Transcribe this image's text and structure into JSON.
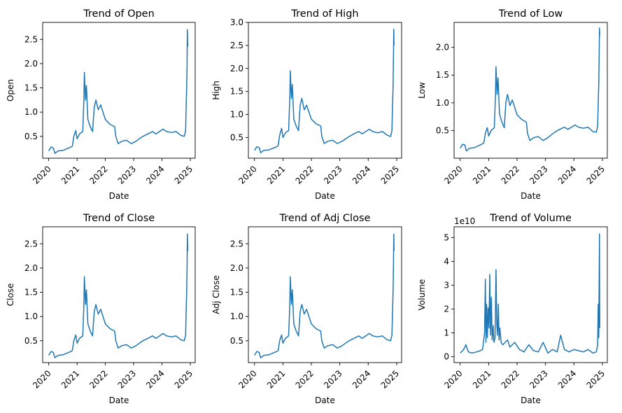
{
  "figure": {
    "background": "#ffffff",
    "line_color": "#1f77b4"
  },
  "chart_data": [
    {
      "type": "line",
      "title": "Trend of Open",
      "xlabel": "Date",
      "ylabel": "Open",
      "xticks": [
        "2020",
        "2021",
        "2022",
        "2023",
        "2024",
        "2025"
      ],
      "yticks": [
        "0.5",
        "1.0",
        "1.5",
        "2.0",
        "2.5"
      ],
      "xlim": [
        "2019-10-15",
        "2025-03-05"
      ],
      "ylim": [
        0.05,
        2.85
      ],
      "series": [
        {
          "x": [
            "2020-01-01",
            "2020-02-01",
            "2020-03-01",
            "2020-03-20",
            "2020-05-01",
            "2020-07-01",
            "2020-09-01",
            "2020-10-15",
            "2020-11-01",
            "2020-11-20",
            "2020-12-15",
            "2021-01-01",
            "2021-02-01",
            "2021-03-15",
            "2021-03-30",
            "2021-04-05",
            "2021-04-20",
            "2021-05-01",
            "2021-05-20",
            "2021-06-20",
            "2021-07-20",
            "2021-08-10",
            "2021-09-01",
            "2021-10-01",
            "2021-11-01",
            "2021-12-01",
            "2022-01-01",
            "2022-03-01",
            "2022-05-01",
            "2022-05-15",
            "2022-06-15",
            "2022-08-01",
            "2022-10-01",
            "2022-12-01",
            "2023-02-01",
            "2023-03-15",
            "2023-05-01",
            "2023-07-01",
            "2023-09-01",
            "2023-10-15",
            "2023-12-01",
            "2024-01-15",
            "2024-03-01",
            "2024-05-01",
            "2024-07-01",
            "2024-09-01",
            "2024-10-15",
            "2024-11-01",
            "2024-11-08",
            "2024-11-15",
            "2024-11-20",
            "2024-11-24",
            "2024-11-28"
          ],
          "y": [
            0.2,
            0.28,
            0.26,
            0.15,
            0.2,
            0.21,
            0.25,
            0.28,
            0.3,
            0.5,
            0.62,
            0.45,
            0.55,
            0.6,
            1.25,
            1.82,
            1.25,
            1.55,
            0.85,
            0.7,
            0.6,
            1.1,
            1.25,
            1.05,
            1.15,
            1.0,
            0.85,
            0.75,
            0.7,
            0.5,
            0.35,
            0.4,
            0.42,
            0.35,
            0.4,
            0.45,
            0.5,
            0.55,
            0.6,
            0.55,
            0.6,
            0.65,
            0.6,
            0.58,
            0.6,
            0.52,
            0.5,
            0.62,
            1.1,
            1.5,
            2.0,
            2.7,
            2.35
          ]
        }
      ]
    },
    {
      "type": "line",
      "title": "Trend of High",
      "xlabel": "Date",
      "ylabel": "High",
      "xticks": [
        "2020",
        "2021",
        "2022",
        "2023",
        "2024",
        "2025"
      ],
      "yticks": [
        "0.5",
        "1.0",
        "1.5",
        "2.0",
        "2.5",
        "3.0"
      ],
      "xlim": [
        "2019-10-15",
        "2025-03-05"
      ],
      "ylim": [
        0.05,
        3.0
      ],
      "series": [
        {
          "x": [
            "2020-01-01",
            "2020-02-01",
            "2020-03-01",
            "2020-03-20",
            "2020-05-01",
            "2020-07-01",
            "2020-09-01",
            "2020-10-15",
            "2020-11-01",
            "2020-11-20",
            "2020-12-15",
            "2021-01-01",
            "2021-02-01",
            "2021-03-15",
            "2021-03-30",
            "2021-04-05",
            "2021-04-20",
            "2021-05-01",
            "2021-05-20",
            "2021-06-20",
            "2021-07-20",
            "2021-08-10",
            "2021-09-01",
            "2021-10-01",
            "2021-11-01",
            "2021-12-01",
            "2022-01-01",
            "2022-03-01",
            "2022-05-01",
            "2022-05-15",
            "2022-06-15",
            "2022-08-01",
            "2022-10-01",
            "2022-12-01",
            "2023-02-01",
            "2023-03-15",
            "2023-05-01",
            "2023-07-01",
            "2023-09-01",
            "2023-10-15",
            "2023-12-01",
            "2024-01-15",
            "2024-03-01",
            "2024-05-01",
            "2024-07-01",
            "2024-09-01",
            "2024-10-15",
            "2024-11-01",
            "2024-11-08",
            "2024-11-15",
            "2024-11-20",
            "2024-11-24",
            "2024-11-28"
          ],
          "y": [
            0.22,
            0.3,
            0.28,
            0.17,
            0.22,
            0.23,
            0.27,
            0.3,
            0.33,
            0.55,
            0.7,
            0.5,
            0.6,
            0.65,
            1.35,
            1.95,
            1.35,
            1.65,
            0.9,
            0.75,
            0.65,
            1.2,
            1.35,
            1.1,
            1.2,
            1.05,
            0.9,
            0.8,
            0.75,
            0.53,
            0.37,
            0.42,
            0.44,
            0.37,
            0.42,
            0.47,
            0.52,
            0.58,
            0.63,
            0.58,
            0.63,
            0.68,
            0.63,
            0.6,
            0.63,
            0.55,
            0.52,
            0.65,
            1.2,
            1.6,
            2.2,
            2.85,
            2.5
          ]
        }
      ]
    },
    {
      "type": "line",
      "title": "Trend of Low",
      "xlabel": "Date",
      "ylabel": "Low",
      "xticks": [
        "2020",
        "2021",
        "2022",
        "2023",
        "2024",
        "2025"
      ],
      "yticks": [
        "0.5",
        "1.0",
        "1.5",
        "2.0"
      ],
      "xlim": [
        "2019-10-15",
        "2025-03-05"
      ],
      "ylim": [
        0.0,
        2.45
      ],
      "series": [
        {
          "x": [
            "2020-01-01",
            "2020-02-01",
            "2020-03-01",
            "2020-03-20",
            "2020-05-01",
            "2020-07-01",
            "2020-09-01",
            "2020-10-15",
            "2020-11-01",
            "2020-11-20",
            "2020-12-15",
            "2021-01-01",
            "2021-02-01",
            "2021-03-15",
            "2021-03-30",
            "2021-04-05",
            "2021-04-20",
            "2021-05-01",
            "2021-05-20",
            "2021-06-20",
            "2021-07-20",
            "2021-08-10",
            "2021-09-01",
            "2021-10-01",
            "2021-11-01",
            "2021-12-01",
            "2022-01-01",
            "2022-03-01",
            "2022-05-01",
            "2022-05-15",
            "2022-06-15",
            "2022-08-01",
            "2022-10-01",
            "2022-12-01",
            "2023-02-01",
            "2023-03-15",
            "2023-05-01",
            "2023-07-01",
            "2023-09-01",
            "2023-10-15",
            "2023-12-01",
            "2024-01-15",
            "2024-03-01",
            "2024-05-01",
            "2024-07-01",
            "2024-09-01",
            "2024-10-15",
            "2024-11-01",
            "2024-11-08",
            "2024-11-15",
            "2024-11-20",
            "2024-11-24",
            "2024-11-28"
          ],
          "y": [
            0.18,
            0.25,
            0.24,
            0.13,
            0.18,
            0.19,
            0.23,
            0.26,
            0.28,
            0.45,
            0.55,
            0.4,
            0.5,
            0.55,
            1.15,
            1.65,
            1.15,
            1.45,
            0.8,
            0.65,
            0.55,
            1.0,
            1.15,
            0.95,
            1.05,
            0.92,
            0.78,
            0.7,
            0.65,
            0.45,
            0.32,
            0.37,
            0.39,
            0.32,
            0.37,
            0.42,
            0.47,
            0.52,
            0.56,
            0.52,
            0.56,
            0.6,
            0.56,
            0.54,
            0.56,
            0.48,
            0.47,
            0.58,
            1.0,
            1.35,
            1.8,
            2.35,
            2.2
          ]
        }
      ]
    },
    {
      "type": "line",
      "title": "Trend of Close",
      "xlabel": "Date",
      "ylabel": "Close",
      "xticks": [
        "2020",
        "2021",
        "2022",
        "2023",
        "2024",
        "2025"
      ],
      "yticks": [
        "0.5",
        "1.0",
        "1.5",
        "2.0",
        "2.5"
      ],
      "xlim": [
        "2019-10-15",
        "2025-03-05"
      ],
      "ylim": [
        0.05,
        2.85
      ],
      "series": [
        {
          "x": [
            "2020-01-01",
            "2020-02-01",
            "2020-03-01",
            "2020-03-20",
            "2020-05-01",
            "2020-07-01",
            "2020-09-01",
            "2020-10-15",
            "2020-11-01",
            "2020-11-20",
            "2020-12-15",
            "2021-01-01",
            "2021-02-01",
            "2021-03-15",
            "2021-03-30",
            "2021-04-05",
            "2021-04-20",
            "2021-05-01",
            "2021-05-20",
            "2021-06-20",
            "2021-07-20",
            "2021-08-10",
            "2021-09-01",
            "2021-10-01",
            "2021-11-01",
            "2021-12-01",
            "2022-01-01",
            "2022-03-01",
            "2022-05-01",
            "2022-05-15",
            "2022-06-15",
            "2022-08-01",
            "2022-10-01",
            "2022-12-01",
            "2023-02-01",
            "2023-03-15",
            "2023-05-01",
            "2023-07-01",
            "2023-09-01",
            "2023-10-15",
            "2023-12-01",
            "2024-01-15",
            "2024-03-01",
            "2024-05-01",
            "2024-07-01",
            "2024-09-01",
            "2024-10-15",
            "2024-11-01",
            "2024-11-08",
            "2024-11-15",
            "2024-11-20",
            "2024-11-24",
            "2024-11-28"
          ],
          "y": [
            0.2,
            0.28,
            0.26,
            0.15,
            0.2,
            0.21,
            0.25,
            0.28,
            0.3,
            0.5,
            0.62,
            0.45,
            0.55,
            0.6,
            1.25,
            1.82,
            1.25,
            1.55,
            0.85,
            0.7,
            0.6,
            1.1,
            1.25,
            1.05,
            1.15,
            1.0,
            0.85,
            0.75,
            0.7,
            0.5,
            0.35,
            0.4,
            0.42,
            0.35,
            0.4,
            0.45,
            0.5,
            0.55,
            0.6,
            0.55,
            0.6,
            0.65,
            0.6,
            0.58,
            0.6,
            0.52,
            0.5,
            0.62,
            1.1,
            1.5,
            2.0,
            2.7,
            2.35
          ]
        }
      ]
    },
    {
      "type": "line",
      "title": "Trend of Adj Close",
      "xlabel": "Date",
      "ylabel": "Adj Close",
      "xticks": [
        "2020",
        "2021",
        "2022",
        "2023",
        "2024",
        "2025"
      ],
      "yticks": [
        "0.5",
        "1.0",
        "1.5",
        "2.0",
        "2.5"
      ],
      "xlim": [
        "2019-10-15",
        "2025-03-05"
      ],
      "ylim": [
        0.05,
        2.85
      ],
      "series": [
        {
          "x": [
            "2020-01-01",
            "2020-02-01",
            "2020-03-01",
            "2020-03-20",
            "2020-05-01",
            "2020-07-01",
            "2020-09-01",
            "2020-10-15",
            "2020-11-01",
            "2020-11-20",
            "2020-12-15",
            "2021-01-01",
            "2021-02-01",
            "2021-03-15",
            "2021-03-30",
            "2021-04-05",
            "2021-04-20",
            "2021-05-01",
            "2021-05-20",
            "2021-06-20",
            "2021-07-20",
            "2021-08-10",
            "2021-09-01",
            "2021-10-01",
            "2021-11-01",
            "2021-12-01",
            "2022-01-01",
            "2022-03-01",
            "2022-05-01",
            "2022-05-15",
            "2022-06-15",
            "2022-08-01",
            "2022-10-01",
            "2022-12-01",
            "2023-02-01",
            "2023-03-15",
            "2023-05-01",
            "2023-07-01",
            "2023-09-01",
            "2023-10-15",
            "2023-12-01",
            "2024-01-15",
            "2024-03-01",
            "2024-05-01",
            "2024-07-01",
            "2024-09-01",
            "2024-10-15",
            "2024-11-01",
            "2024-11-08",
            "2024-11-15",
            "2024-11-20",
            "2024-11-24",
            "2024-11-28"
          ],
          "y": [
            0.2,
            0.28,
            0.26,
            0.15,
            0.2,
            0.21,
            0.25,
            0.28,
            0.3,
            0.5,
            0.62,
            0.45,
            0.55,
            0.6,
            1.25,
            1.82,
            1.25,
            1.55,
            0.85,
            0.7,
            0.6,
            1.1,
            1.25,
            1.05,
            1.15,
            1.0,
            0.85,
            0.75,
            0.7,
            0.5,
            0.35,
            0.4,
            0.42,
            0.35,
            0.4,
            0.45,
            0.5,
            0.55,
            0.6,
            0.55,
            0.6,
            0.65,
            0.6,
            0.58,
            0.6,
            0.52,
            0.5,
            0.62,
            1.1,
            1.5,
            2.0,
            2.7,
            2.35
          ]
        }
      ]
    },
    {
      "type": "line",
      "title": "Trend of Volume",
      "xlabel": "Date",
      "ylabel": "Volume",
      "offset_text": "1e10",
      "xticks": [
        "2020",
        "2021",
        "2022",
        "2023",
        "2024",
        "2025"
      ],
      "yticks": [
        "0",
        "1",
        "2",
        "3",
        "4",
        "5"
      ],
      "xlim": [
        "2019-10-15",
        "2025-03-05"
      ],
      "ylim": [
        -0.25,
        5.45
      ],
      "series": [
        {
          "x": [
            "2020-01-01",
            "2020-02-15",
            "2020-03-15",
            "2020-04-15",
            "2020-06-01",
            "2020-08-01",
            "2020-09-15",
            "2020-10-15",
            "2020-11-10",
            "2020-11-20",
            "2020-11-28",
            "2020-12-05",
            "2020-12-15",
            "2020-12-25",
            "2021-01-05",
            "2021-01-15",
            "2021-01-25",
            "2021-02-05",
            "2021-02-15",
            "2021-02-28",
            "2021-03-10",
            "2021-03-25",
            "2021-04-05",
            "2021-04-15",
            "2021-04-25",
            "2021-05-05",
            "2021-05-15",
            "2021-05-25",
            "2021-06-10",
            "2021-07-01",
            "2021-08-01",
            "2021-09-01",
            "2021-10-01",
            "2021-11-01",
            "2021-12-01",
            "2022-02-01",
            "2022-04-01",
            "2022-06-01",
            "2022-08-01",
            "2022-10-01",
            "2022-12-01",
            "2023-02-01",
            "2023-04-01",
            "2023-06-01",
            "2023-07-15",
            "2023-09-01",
            "2023-11-01",
            "2024-01-01",
            "2024-03-01",
            "2024-05-01",
            "2024-07-01",
            "2024-09-01",
            "2024-10-15",
            "2024-11-01",
            "2024-11-08",
            "2024-11-15",
            "2024-11-20",
            "2024-11-24",
            "2024-11-28"
          ],
          "y": [
            0.15,
            0.3,
            0.5,
            0.2,
            0.15,
            0.2,
            0.25,
            0.3,
            1.0,
            3.25,
            0.6,
            2.2,
            0.8,
            2.05,
            1.2,
            3.45,
            0.9,
            2.5,
            0.7,
            1.3,
            0.6,
            0.8,
            3.65,
            1.4,
            0.9,
            2.2,
            0.7,
            1.2,
            0.6,
            0.5,
            0.6,
            0.7,
            0.4,
            0.5,
            0.6,
            0.3,
            0.2,
            0.5,
            0.25,
            0.2,
            0.6,
            0.15,
            0.3,
            0.2,
            0.9,
            0.3,
            0.2,
            0.3,
            0.25,
            0.2,
            0.3,
            0.15,
            0.2,
            0.5,
            2.2,
            0.8,
            3.0,
            5.15,
            1.2
          ]
        }
      ]
    }
  ]
}
